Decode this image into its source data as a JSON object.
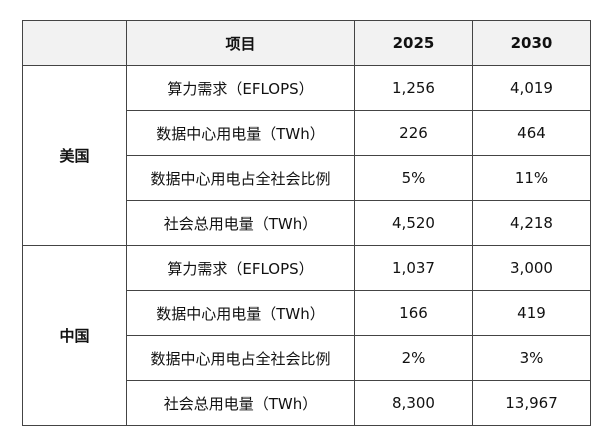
{
  "header": {
    "blank": "",
    "item": "项目",
    "year1": "2025",
    "year2": "2030"
  },
  "groups": [
    {
      "region": "美国",
      "rows": [
        {
          "item": "算力需求（EFLOPS）",
          "v2025": "1,256",
          "v2030": "4,019"
        },
        {
          "item": "数据中心用电量（TWh）",
          "v2025": "226",
          "v2030": "464"
        },
        {
          "item": "数据中心用电占全社会比例",
          "v2025": "5%",
          "v2030": "11%"
        },
        {
          "item": "社会总用电量（TWh）",
          "v2025": "4,520",
          "v2030": "4,218"
        }
      ]
    },
    {
      "region": "中国",
      "rows": [
        {
          "item": "算力需求（EFLOPS）",
          "v2025": "1,037",
          "v2030": "3,000"
        },
        {
          "item": "数据中心用电量（TWh）",
          "v2025": "166",
          "v2030": "419"
        },
        {
          "item": "数据中心用电占全社会比例",
          "v2025": "2%",
          "v2030": "3%"
        },
        {
          "item": "社会总用电量（TWh）",
          "v2025": "8,300",
          "v2030": "13,967"
        }
      ]
    }
  ]
}
